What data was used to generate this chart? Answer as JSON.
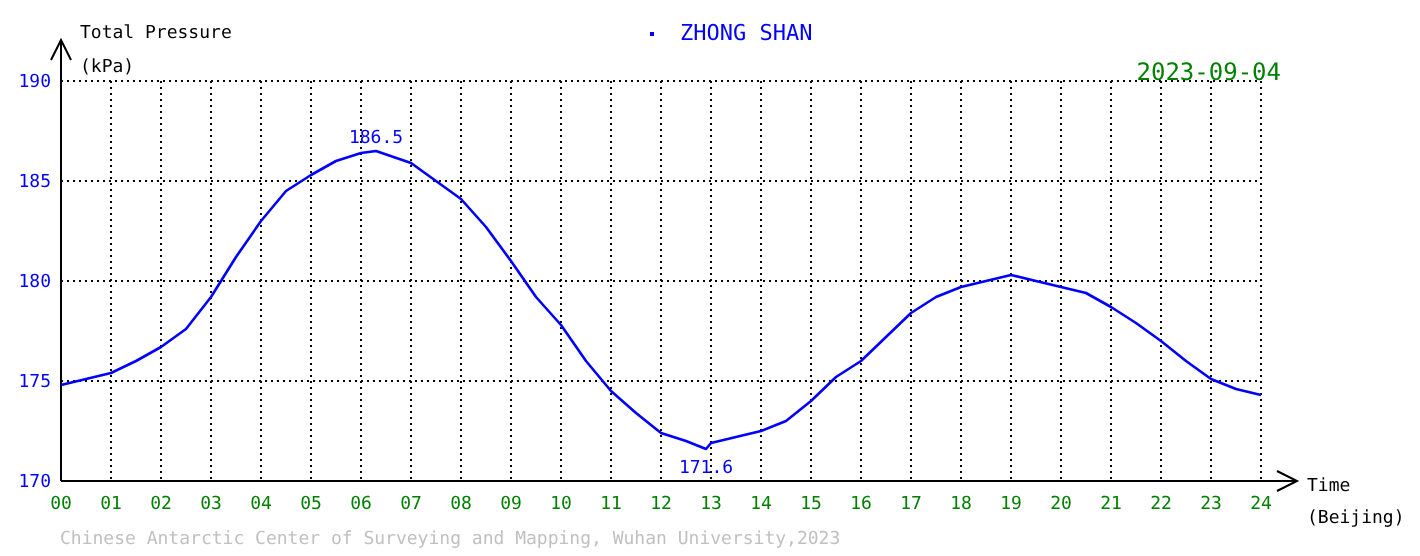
{
  "chart_data": {
    "type": "line",
    "subtitle": "2023-09-04",
    "xlabel": "Time\n(Beijing)",
    "ylabel": "Total Pressure\n(kPa)",
    "legend": "top",
    "grid": true,
    "marker": "none",
    "line_style": "solid",
    "xlim": [
      0,
      24
    ],
    "ylim": [
      170,
      190
    ],
    "xticks": [
      {
        "value": 0,
        "label": "00"
      },
      {
        "value": 1,
        "label": "01"
      },
      {
        "value": 2,
        "label": "02"
      },
      {
        "value": 3,
        "label": "03"
      },
      {
        "value": 4,
        "label": "04"
      },
      {
        "value": 5,
        "label": "05"
      },
      {
        "value": 6,
        "label": "06"
      },
      {
        "value": 7,
        "label": "07"
      },
      {
        "value": 8,
        "label": "08"
      },
      {
        "value": 9,
        "label": "09"
      },
      {
        "value": 10,
        "label": "10"
      },
      {
        "value": 11,
        "label": "11"
      },
      {
        "value": 12,
        "label": "12"
      },
      {
        "value": 13,
        "label": "13"
      },
      {
        "value": 14,
        "label": "14"
      },
      {
        "value": 15,
        "label": "15"
      },
      {
        "value": 16,
        "label": "16"
      },
      {
        "value": 17,
        "label": "17"
      },
      {
        "value": 18,
        "label": "18"
      },
      {
        "value": 19,
        "label": "19"
      },
      {
        "value": 20,
        "label": "20"
      },
      {
        "value": 21,
        "label": "21"
      },
      {
        "value": 22,
        "label": "22"
      },
      {
        "value": 23,
        "label": "23"
      },
      {
        "value": 24,
        "label": "24"
      }
    ],
    "yticks": [
      170,
      175,
      180,
      185,
      190
    ],
    "series": [
      {
        "name": "ZHONG SHAN",
        "color": "#0000ff",
        "x": [
          0,
          0.5,
          1,
          1.5,
          2,
          2.5,
          3,
          3.5,
          4,
          4.5,
          5,
          5.5,
          6,
          6.3,
          7,
          7.5,
          8,
          8.5,
          9,
          9.5,
          10,
          10.5,
          11,
          11.5,
          12,
          12.5,
          12.9,
          13,
          13.5,
          14,
          14.5,
          15,
          15.5,
          16,
          16.5,
          17,
          17.5,
          18,
          18.5,
          19,
          19.5,
          20,
          20.5,
          21,
          21.5,
          22,
          22.5,
          23,
          23.5,
          24
        ],
        "values": [
          174.8,
          175.1,
          175.4,
          176.0,
          176.7,
          177.6,
          179.2,
          181.2,
          183.0,
          184.5,
          185.3,
          186.0,
          186.4,
          186.5,
          185.9,
          185.0,
          184.1,
          182.7,
          181.0,
          179.2,
          177.8,
          176.0,
          174.5,
          173.4,
          172.4,
          172.0,
          171.6,
          171.9,
          172.2,
          172.5,
          173.0,
          174.0,
          175.2,
          176.0,
          177.2,
          178.4,
          179.2,
          179.7,
          180.0,
          180.3,
          180.0,
          179.7,
          179.4,
          178.7,
          177.9,
          177.0,
          176.0,
          175.1,
          174.6,
          174.3
        ]
      }
    ],
    "annotations": [
      {
        "text": "186.5",
        "x": 6.3,
        "y": 186.5
      },
      {
        "text": "171.6",
        "x": 12.9,
        "y": 171.6
      },
      "Chinese Antarctic Center of Surveying and Mapping, Wuhan University,2023"
    ]
  }
}
